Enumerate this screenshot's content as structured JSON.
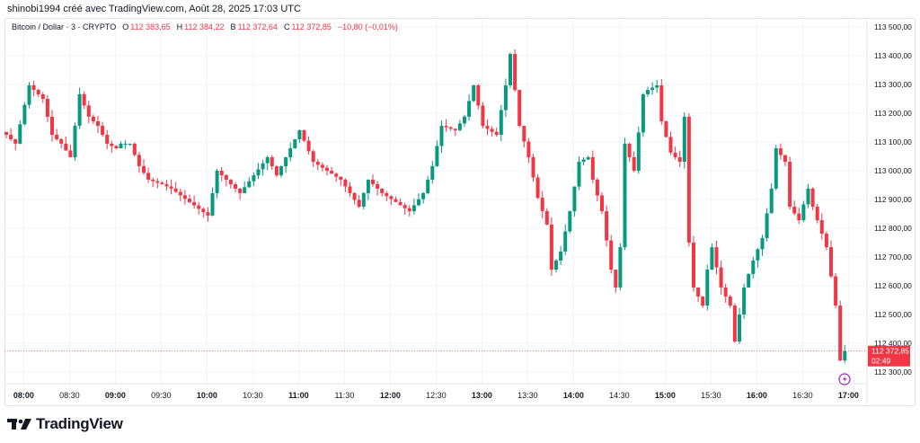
{
  "header": {
    "caption": "shinobi1994 créé avec TradingView.com, Août 28, 2025 17:03 UTC",
    "symbol": "Bitcoin / Dollar · 3 · CRYPTO",
    "open_label": "O",
    "open": "112 383,65",
    "high_label": "H",
    "high": "112 384,22",
    "low_label": "B",
    "low": "112 372,64",
    "close_label": "C",
    "close": "112 372,85",
    "change": "−10,80 (−0,01%)"
  },
  "price_tag": {
    "price": "112 372,85",
    "countdown": "02:49"
  },
  "brand": {
    "name": "TradingView"
  },
  "colors": {
    "up": "#089981",
    "down": "#f23645",
    "grid": "#f0f3fa",
    "text": "#131722"
  },
  "chart_data": {
    "type": "candlestick",
    "title": "Bitcoin / Dollar · 3 · CRYPTO",
    "interval_minutes": 3,
    "ylim": [
      112250,
      113550
    ],
    "y_ticks": [
      113500,
      113400,
      113300,
      113200,
      113100,
      113000,
      112900,
      112800,
      112700,
      112600,
      112500,
      112400,
      112300
    ],
    "y_tick_labels": [
      "113 500,00",
      "113 400,00",
      "113 300,00",
      "113 200,00",
      "113 100,00",
      "113 000,00",
      "112 900,00",
      "112 800,00",
      "112 700,00",
      "112 600,00",
      "112 500,00",
      "112 400,00",
      "112 300,00"
    ],
    "x_ticks": [
      {
        "label": "08:00",
        "index": 4,
        "hour": true
      },
      {
        "label": "08:30",
        "index": 14,
        "hour": false
      },
      {
        "label": "09:00",
        "index": 24,
        "hour": true
      },
      {
        "label": "09:30",
        "index": 34,
        "hour": false
      },
      {
        "label": "10:00",
        "index": 44,
        "hour": true
      },
      {
        "label": "10:30",
        "index": 54,
        "hour": false
      },
      {
        "label": "11:00",
        "index": 64,
        "hour": true
      },
      {
        "label": "11:30",
        "index": 74,
        "hour": false
      },
      {
        "label": "12:00",
        "index": 84,
        "hour": true
      },
      {
        "label": "12:30",
        "index": 94,
        "hour": false
      },
      {
        "label": "13:00",
        "index": 104,
        "hour": true
      },
      {
        "label": "13:30",
        "index": 114,
        "hour": false
      },
      {
        "label": "14:00",
        "index": 124,
        "hour": true
      },
      {
        "label": "14:30",
        "index": 134,
        "hour": false
      },
      {
        "label": "15:00",
        "index": 144,
        "hour": true
      },
      {
        "label": "15:30",
        "index": 154,
        "hour": false
      },
      {
        "label": "16:00",
        "index": 164,
        "hour": true
      },
      {
        "label": "16:30",
        "index": 174,
        "hour": false
      },
      {
        "label": "17:00",
        "index": 184,
        "hour": true
      }
    ],
    "last_price": 112372.85,
    "close_waypoints": [
      [
        0,
        113125
      ],
      [
        2,
        113094
      ],
      [
        5,
        113297
      ],
      [
        8,
        113250
      ],
      [
        10,
        113125
      ],
      [
        12,
        113094
      ],
      [
        14,
        113047
      ],
      [
        16,
        113266
      ],
      [
        18,
        113188
      ],
      [
        20,
        113156
      ],
      [
        22,
        113094
      ],
      [
        24,
        113078
      ],
      [
        25,
        113094
      ],
      [
        27,
        113094
      ],
      [
        29,
        113016
      ],
      [
        31,
        112969
      ],
      [
        34,
        112953
      ],
      [
        36,
        112938
      ],
      [
        40,
        112891
      ],
      [
        44,
        112844
      ],
      [
        46,
        113000
      ],
      [
        49,
        112953
      ],
      [
        51,
        112922
      ],
      [
        54,
        112984
      ],
      [
        57,
        113047
      ],
      [
        59,
        112984
      ],
      [
        62,
        113078
      ],
      [
        64,
        113141
      ],
      [
        67,
        113031
      ],
      [
        70,
        113000
      ],
      [
        73,
        112969
      ],
      [
        75,
        112922
      ],
      [
        77,
        112875
      ],
      [
        79,
        112969
      ],
      [
        82,
        112922
      ],
      [
        85,
        112891
      ],
      [
        88,
        112859
      ],
      [
        91,
        112922
      ],
      [
        93,
        113016
      ],
      [
        95,
        113156
      ],
      [
        98,
        113141
      ],
      [
        100,
        113188
      ],
      [
        102,
        113297
      ],
      [
        104,
        113156
      ],
      [
        107,
        113125
      ],
      [
        109,
        113297
      ],
      [
        110,
        113406
      ],
      [
        112,
        113156
      ],
      [
        114,
        113047
      ],
      [
        116,
        112906
      ],
      [
        118,
        112813
      ],
      [
        119,
        112656
      ],
      [
        121,
        112719
      ],
      [
        123,
        112859
      ],
      [
        125,
        113031
      ],
      [
        127,
        113047
      ],
      [
        128,
        112969
      ],
      [
        130,
        112859
      ],
      [
        132,
        112656
      ],
      [
        133,
        112594
      ],
      [
        134,
        112734
      ],
      [
        135,
        113094
      ],
      [
        137,
        113000
      ],
      [
        139,
        113266
      ],
      [
        140,
        113281
      ],
      [
        142,
        113297
      ],
      [
        143,
        113172
      ],
      [
        145,
        113063
      ],
      [
        147,
        113031
      ],
      [
        148,
        113188
      ],
      [
        149,
        112750
      ],
      [
        150,
        112594
      ],
      [
        152,
        112531
      ],
      [
        153,
        112656
      ],
      [
        154,
        112734
      ],
      [
        156,
        112594
      ],
      [
        158,
        112531
      ],
      [
        159,
        112406
      ],
      [
        161,
        112594
      ],
      [
        163,
        112688
      ],
      [
        165,
        112766
      ],
      [
        167,
        112938
      ],
      [
        168,
        113078
      ],
      [
        170,
        113031
      ],
      [
        171,
        112875
      ],
      [
        173,
        112828
      ],
      [
        175,
        112938
      ],
      [
        176,
        112875
      ],
      [
        178,
        112781
      ],
      [
        179,
        112734
      ],
      [
        181,
        112531
      ],
      [
        182,
        112340
      ],
      [
        183,
        112373
      ]
    ]
  }
}
